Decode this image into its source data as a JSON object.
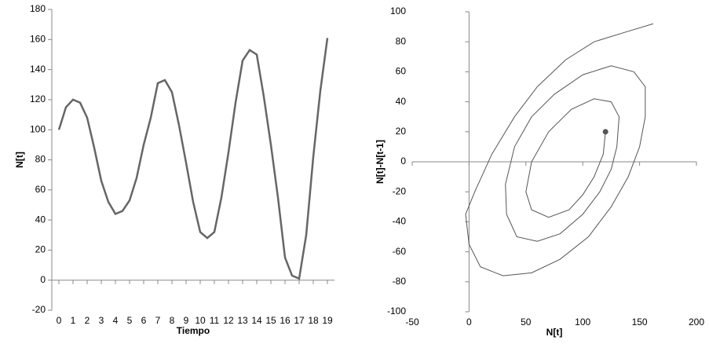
{
  "chart_data": [
    {
      "type": "line",
      "x_title": "Tiempo",
      "y_title": "N[t]",
      "color": "#666666",
      "line_width": 2.5,
      "x": [
        0,
        0.5,
        1,
        1.5,
        2,
        2.5,
        3,
        3.5,
        4,
        4.5,
        5,
        5.5,
        6,
        6.5,
        7,
        7.5,
        8,
        8.5,
        9,
        9.5,
        10,
        10.5,
        11,
        11.5,
        12,
        12.5,
        13,
        13.5,
        14,
        14.5,
        15,
        15.5,
        16,
        16.5,
        17,
        17.5,
        18,
        18.5,
        19
      ],
      "y": [
        100,
        115,
        120,
        118,
        108,
        88,
        66,
        52,
        44,
        46,
        53,
        68,
        90,
        108,
        131,
        133,
        125,
        103,
        78,
        52,
        32,
        28,
        32,
        55,
        85,
        118,
        146,
        153,
        150,
        122,
        90,
        55,
        15,
        3,
        1,
        30,
        82,
        126,
        161
      ],
      "xlim": [
        -0.5,
        19.5
      ],
      "xticks": [
        0,
        1,
        2,
        3,
        4,
        5,
        6,
        7,
        8,
        9,
        10,
        11,
        12,
        13,
        14,
        15,
        16,
        17,
        18,
        19
      ],
      "ylim": [
        -20,
        180
      ],
      "yticks": [
        -20,
        0,
        20,
        40,
        60,
        80,
        100,
        120,
        140,
        160,
        180
      ],
      "axes_cross_zero": false,
      "end_marker": false
    },
    {
      "type": "line",
      "x_title": "N[t]",
      "y_title": "N[t]-N[t-1]",
      "color": "#555555",
      "line_width": 1,
      "x": [
        162,
        140,
        110,
        85,
        60,
        40,
        20,
        5,
        -3,
        0,
        10,
        30,
        55,
        80,
        105,
        125,
        140,
        150,
        155,
        155,
        145,
        125,
        100,
        75,
        55,
        40,
        32,
        33,
        42,
        60,
        80,
        100,
        115,
        125,
        130,
        132,
        125,
        110,
        90,
        70,
        55,
        50,
        55,
        70,
        88,
        100,
        110,
        118,
        120
      ],
      "y": [
        92,
        87,
        80,
        68,
        50,
        30,
        5,
        -20,
        -35,
        -55,
        -70,
        -76,
        -74,
        -65,
        -50,
        -30,
        -10,
        10,
        30,
        50,
        60,
        64,
        58,
        45,
        30,
        10,
        -15,
        -35,
        -50,
        -53,
        -48,
        -35,
        -20,
        -5,
        10,
        30,
        40,
        42,
        35,
        20,
        0,
        -20,
        -32,
        -37,
        -32,
        -22,
        -10,
        5,
        20
      ],
      "xlim": [
        -50,
        200
      ],
      "xticks": [
        -50,
        0,
        50,
        100,
        150,
        200
      ],
      "ylim": [
        -100,
        100
      ],
      "yticks": [
        -100,
        -80,
        -60,
        -40,
        -20,
        0,
        20,
        40,
        60,
        80,
        100
      ],
      "axes_cross_zero": true,
      "end_marker": true
    }
  ]
}
